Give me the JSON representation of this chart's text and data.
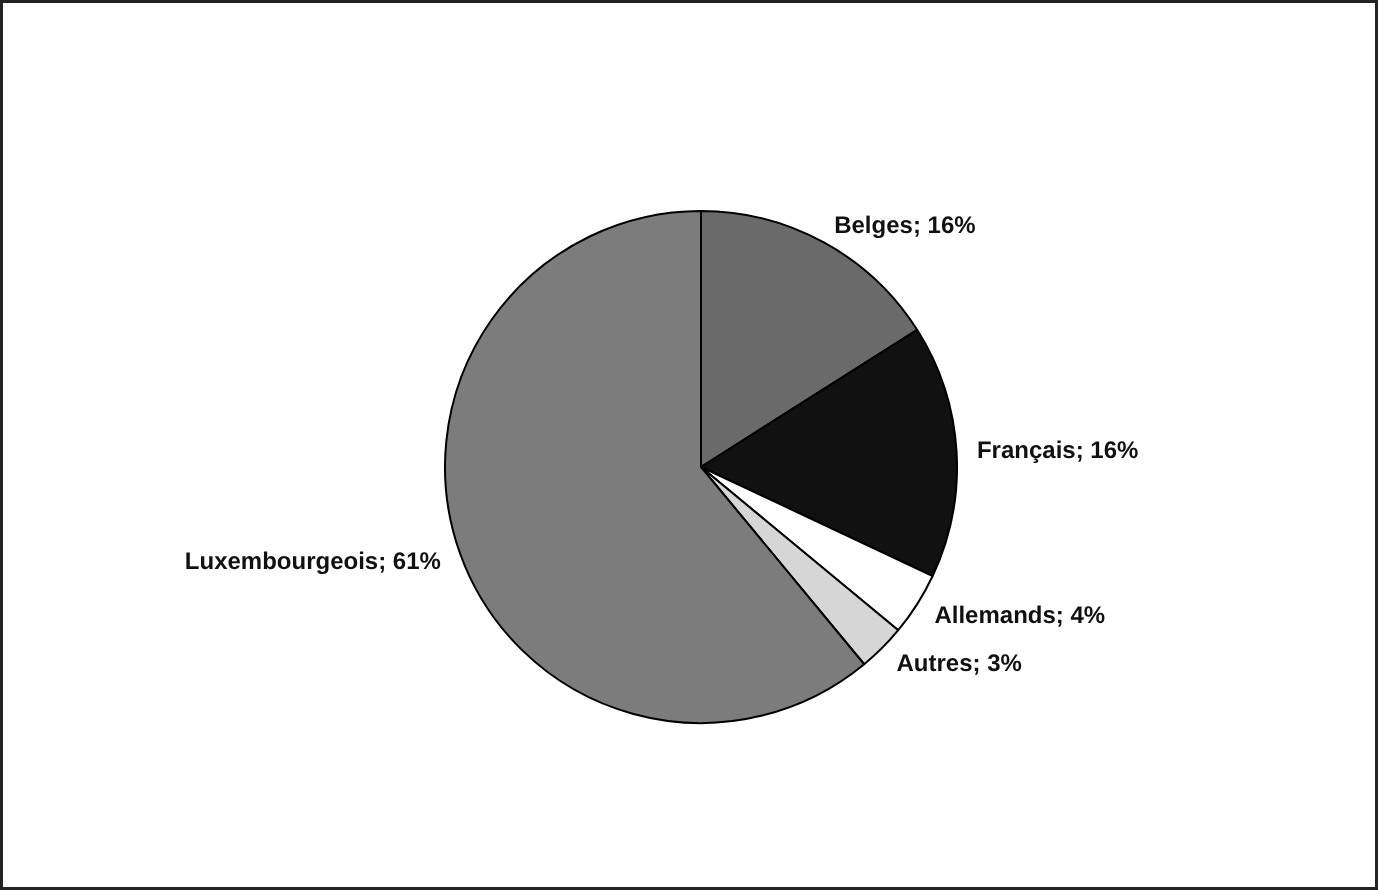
{
  "chart_data": {
    "type": "pie",
    "categories": [
      "Belges",
      "Français",
      "Allemands",
      "Autres",
      "Luxembourgeois"
    ],
    "values": [
      16,
      16,
      4,
      3,
      61
    ],
    "value_labels": [
      "16%",
      "16%",
      "4%",
      "3%",
      "61%"
    ],
    "colors": [
      "#6a6a6a",
      "#111111",
      "#ffffff",
      "#d6d6d6",
      "#7c7c7c"
    ]
  }
}
